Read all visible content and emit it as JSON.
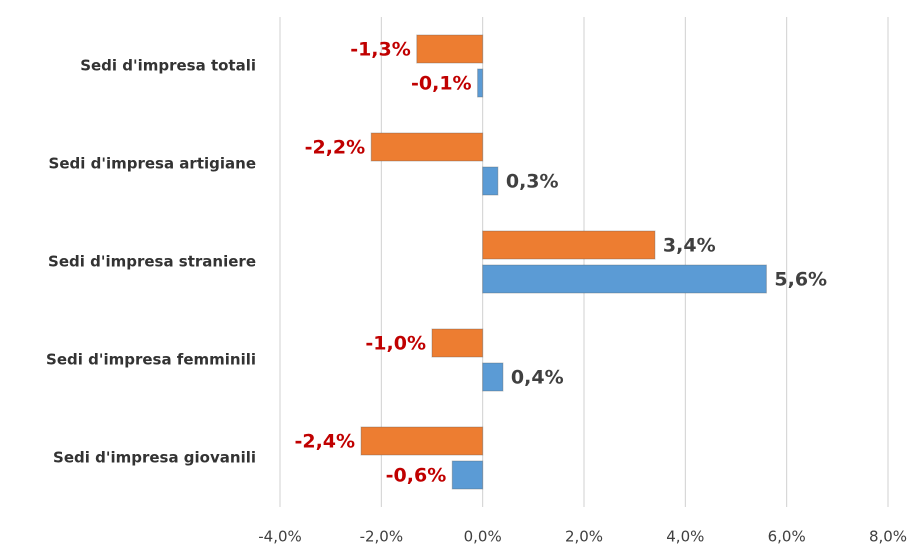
{
  "chart_data": {
    "type": "bar",
    "orientation": "horizontal",
    "categories": [
      "Sedi d'impresa totali",
      "Sedi d'impresa artigiane",
      "Sedi d'impresa straniere",
      "Sedi d'impresa femminili",
      "Sedi d'impresa giovanili"
    ],
    "series": [
      {
        "color": "#ed7d31",
        "values": [
          -1.3,
          -2.2,
          3.4,
          -1.0,
          -2.4
        ],
        "value_labels": [
          "-1,3%",
          "-2,2%",
          "3,4%",
          "-1,0%",
          "-2,4%"
        ]
      },
      {
        "color": "#5b9bd5",
        "values": [
          -0.1,
          0.3,
          5.6,
          0.4,
          -0.6
        ],
        "value_labels": [
          "-0,1%",
          "0,3%",
          "5,6%",
          "0,4%",
          "-0,6%"
        ]
      }
    ],
    "xlim": [
      -4,
      8
    ],
    "xticks": [
      {
        "value": -4,
        "label": "-4,0%"
      },
      {
        "value": -2,
        "label": "-2,0%"
      },
      {
        "value": 0,
        "label": "0,0%"
      },
      {
        "value": 2,
        "label": "2,0%"
      },
      {
        "value": 4,
        "label": "4,0%"
      },
      {
        "value": 6,
        "label": "6,0%"
      },
      {
        "value": 8,
        "label": "8,0%"
      }
    ],
    "grid": true,
    "negative_label_color": "#c00000",
    "positive_label_color": "#404040"
  }
}
